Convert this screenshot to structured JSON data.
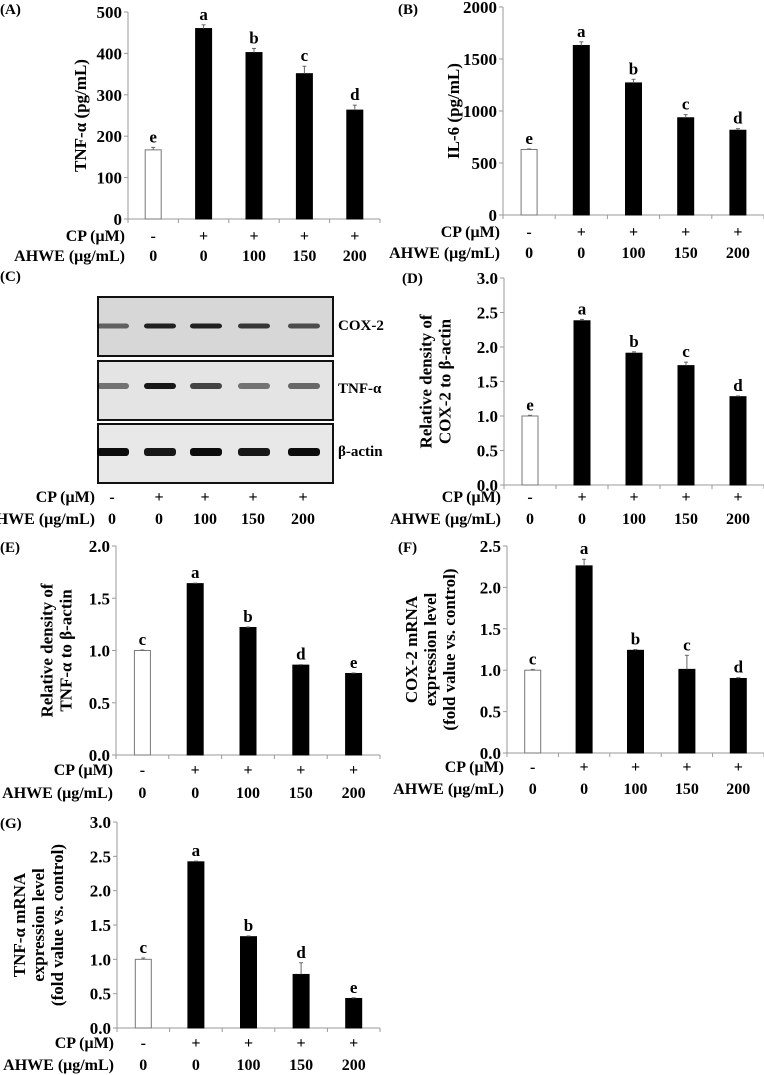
{
  "figure": {
    "x_rows": {
      "cp_label": "CP (μM)",
      "ahwe_label": "AHWE (μg/mL)",
      "cp_values": [
        "-",
        "+",
        "+",
        "+",
        "+"
      ],
      "ahwe_values": [
        "0",
        "0",
        "100",
        "150",
        "200"
      ]
    },
    "western_blot": {
      "panel_label": "(C)",
      "bands": [
        "COX-2",
        "TNF-α",
        "β-actin"
      ],
      "lanes": 5
    }
  },
  "chart_data": [
    {
      "panel": "(A)",
      "type": "bar",
      "categories": [
        "CP -, AHWE 0",
        "CP +, AHWE 0",
        "CP +, AHWE 100",
        "CP +, AHWE 150",
        "CP +, AHWE 200"
      ],
      "values": [
        167,
        460,
        402,
        351,
        263
      ],
      "errors": [
        6,
        9,
        10,
        18,
        12
      ],
      "letters": [
        "e",
        "a",
        "b",
        "c",
        "d"
      ],
      "ylabel": [
        "TNF-α (pg/mL)"
      ],
      "yticks": [
        "0",
        "100",
        "200",
        "300",
        "400",
        "500"
      ],
      "ylim": [
        0,
        500
      ],
      "fills": [
        "#ffffff",
        "#000000",
        "#000000",
        "#000000",
        "#000000"
      ],
      "grid": false
    },
    {
      "panel": "(B)",
      "type": "bar",
      "categories": [
        "CP -, AHWE 0",
        "CP +, AHWE 0",
        "CP +, AHWE 100",
        "CP +, AHWE 150",
        "CP +, AHWE 200"
      ],
      "values": [
        630,
        1630,
        1270,
        935,
        815
      ],
      "errors": [
        5,
        35,
        35,
        30,
        15
      ],
      "letters": [
        "e",
        "a",
        "b",
        "c",
        "d"
      ],
      "ylabel": [
        "IL-6 (pg/mL)"
      ],
      "yticks": [
        "0",
        "500",
        "1000",
        "1500",
        "2000"
      ],
      "ylim": [
        0,
        2000
      ],
      "fills": [
        "#ffffff",
        "#000000",
        "#000000",
        "#000000",
        "#000000"
      ],
      "grid": false
    },
    {
      "panel": "(D)",
      "type": "bar",
      "categories": [
        "CP -, AHWE 0",
        "CP +, AHWE 0",
        "CP +, AHWE 100",
        "CP +, AHWE 150",
        "CP +, AHWE 200"
      ],
      "values": [
        1.0,
        2.38,
        1.91,
        1.73,
        1.28
      ],
      "errors": [
        0.01,
        0.02,
        0.02,
        0.05,
        0.01
      ],
      "letters": [
        "e",
        "a",
        "b",
        "c",
        "d"
      ],
      "ylabel": [
        "Relative density of",
        "COX-2 to β-actin"
      ],
      "yticks": [
        "0.0",
        "0.5",
        "1.0",
        "1.5",
        "2.0",
        "2.5",
        "3.0"
      ],
      "ylim": [
        0,
        3.0
      ],
      "fills": [
        "#ffffff",
        "#000000",
        "#000000",
        "#000000",
        "#000000"
      ],
      "grid": false
    },
    {
      "panel": "(E)",
      "type": "bar",
      "categories": [
        "CP -, AHWE 0",
        "CP +, AHWE 0",
        "CP +, AHWE 100",
        "CP +, AHWE 150",
        "CP +, AHWE 200"
      ],
      "values": [
        1.0,
        1.64,
        1.22,
        0.86,
        0.78
      ],
      "errors": [
        0.005,
        0.005,
        0.005,
        0.005,
        0.005
      ],
      "letters": [
        "c",
        "a",
        "b",
        "d",
        "e"
      ],
      "ylabel": [
        "Relative density of",
        "TNF-α to β-actin"
      ],
      "yticks": [
        "0.0",
        "0.5",
        "1.0",
        "1.5",
        "2.0"
      ],
      "ylim": [
        0,
        2.0
      ],
      "fills": [
        "#ffffff",
        "#000000",
        "#000000",
        "#000000",
        "#000000"
      ],
      "grid": false
    },
    {
      "panel": "(F)",
      "type": "bar",
      "categories": [
        "CP -, AHWE 0",
        "CP +, AHWE 0",
        "CP +, AHWE 100",
        "CP +, AHWE 150",
        "CP +, AHWE 200"
      ],
      "values": [
        1.0,
        2.26,
        1.24,
        1.01,
        0.9
      ],
      "errors": [
        0.01,
        0.08,
        0.01,
        0.17,
        0.01
      ],
      "letters": [
        "c",
        "a",
        "b",
        "c",
        "d"
      ],
      "ylabel": [
        "COX-2 mRNA",
        "expression level",
        "(fold value vs. control)"
      ],
      "yticks": [
        "0.0",
        "0.5",
        "1.0",
        "1.5",
        "2.0",
        "2.5"
      ],
      "ylim": [
        0,
        2.5
      ],
      "fills": [
        "#ffffff",
        "#000000",
        "#000000",
        "#000000",
        "#000000"
      ],
      "grid": false
    },
    {
      "panel": "(G)",
      "type": "bar",
      "categories": [
        "CP -, AHWE 0",
        "CP +, AHWE 0",
        "CP +, AHWE 100",
        "CP +, AHWE 150",
        "CP +, AHWE 200"
      ],
      "values": [
        1.0,
        2.42,
        1.33,
        0.78,
        0.43
      ],
      "errors": [
        0.02,
        0.01,
        0.01,
        0.17,
        0.01
      ],
      "letters": [
        "c",
        "a",
        "b",
        "d",
        "e"
      ],
      "ylabel": [
        "TNF-α mRNA",
        "expression level",
        "(fold value vs. control)"
      ],
      "yticks": [
        "0.0",
        "0.5",
        "1.0",
        "1.5",
        "2.0",
        "2.5",
        "3.0"
      ],
      "ylim": [
        0,
        3.0
      ],
      "fills": [
        "#ffffff",
        "#000000",
        "#000000",
        "#000000",
        "#000000"
      ],
      "grid": false
    }
  ]
}
